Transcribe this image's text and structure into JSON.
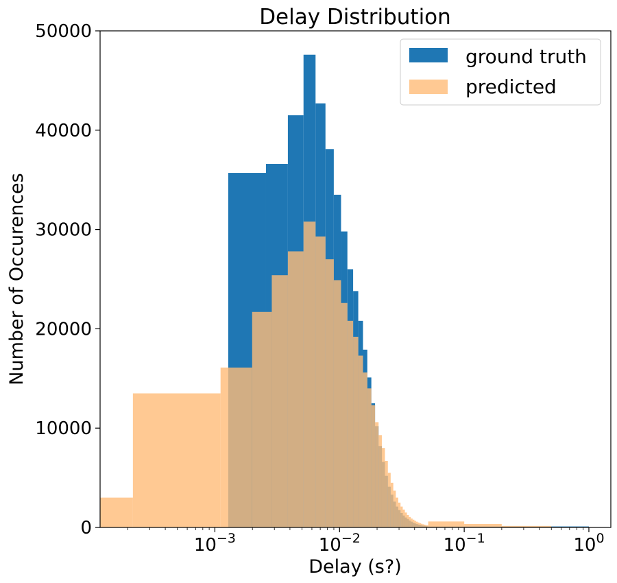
{
  "chart_data": {
    "type": "bar",
    "title": "Delay Distribution",
    "xlabel": "Delay (s?)",
    "ylabel": "Number of Occurences",
    "xscale": "log",
    "xlim": [
      0.00012,
      1.5
    ],
    "ylim": [
      0,
      50000
    ],
    "grid": false,
    "legend_position": "top-right",
    "y_ticks": [
      "0",
      "10000",
      "20000",
      "30000",
      "40000",
      "50000"
    ],
    "x_tick_labels": [
      {
        "base": "10",
        "exp": "−3"
      },
      {
        "base": "10",
        "exp": "−2"
      },
      {
        "base": "10",
        "exp": "−1"
      },
      {
        "base": "10",
        "exp": "0"
      }
    ],
    "series": [
      {
        "name": "ground truth",
        "color": "#1f77b4",
        "alpha": 1,
        "edges": [
          0.00128,
          0.00257,
          0.00385,
          0.00514,
          0.00642,
          0.00771,
          0.00899,
          0.01028,
          0.01156,
          0.01285,
          0.01413,
          0.01542,
          0.0167,
          0.01799,
          0.01927,
          0.02056,
          0.02184,
          0.02313,
          0.02441,
          0.0257,
          0.02698,
          0.02827,
          0.02955,
          0.03084,
          0.03212,
          0.03341,
          0.03469,
          0.03598,
          0.03726,
          0.03855,
          0.03983,
          0.04112,
          0.0424,
          0.04369,
          0.04497,
          0.04626,
          0.04754,
          0.04883,
          0.05011,
          0.0514,
          1.0
        ],
        "values": [
          35700,
          36600,
          41500,
          47600,
          42700,
          38100,
          33500,
          29800,
          26000,
          23800,
          20800,
          17900,
          15100,
          12500,
          10200,
          8200,
          6600,
          5200,
          4100,
          3300,
          2600,
          2100,
          1750,
          1450,
          1200,
          1000,
          850,
          700,
          580,
          480,
          400,
          340,
          290,
          250,
          210,
          180,
          160,
          140,
          120,
          100
        ]
      },
      {
        "name": "predicted",
        "color": "#ffbb78",
        "alpha": 0.8,
        "edges": [
          0.00012,
          0.00022,
          0.00111,
          0.00128,
          0.00199,
          0.00286,
          0.00385,
          0.00514,
          0.00642,
          0.00771,
          0.00899,
          0.01028,
          0.01156,
          0.01285,
          0.01413,
          0.01542,
          0.0167,
          0.01799,
          0.01927,
          0.02056,
          0.02184,
          0.02313,
          0.02441,
          0.0257,
          0.02698,
          0.02827,
          0.02955,
          0.03084,
          0.03212,
          0.03341,
          0.03469,
          0.03598,
          0.03726,
          0.03855,
          0.03983,
          0.04112,
          0.0424,
          0.04369,
          0.04497,
          0.04626,
          0.04754,
          0.04883,
          0.05011,
          0.0514,
          0.1,
          0.2,
          0.5,
          1.0
        ],
        "values": [
          3000,
          13500,
          16100,
          16100,
          21700,
          25400,
          27800,
          30800,
          29300,
          27000,
          24900,
          22600,
          20800,
          19200,
          17300,
          15600,
          14000,
          12300,
          10600,
          9300,
          8000,
          6700,
          5500,
          4500,
          3700,
          3000,
          2500,
          2100,
          1800,
          1500,
          1250,
          1050,
          900,
          780,
          670,
          580,
          500,
          430,
          370,
          320,
          280,
          240,
          210,
          600,
          350,
          150,
          50
        ]
      }
    ]
  }
}
